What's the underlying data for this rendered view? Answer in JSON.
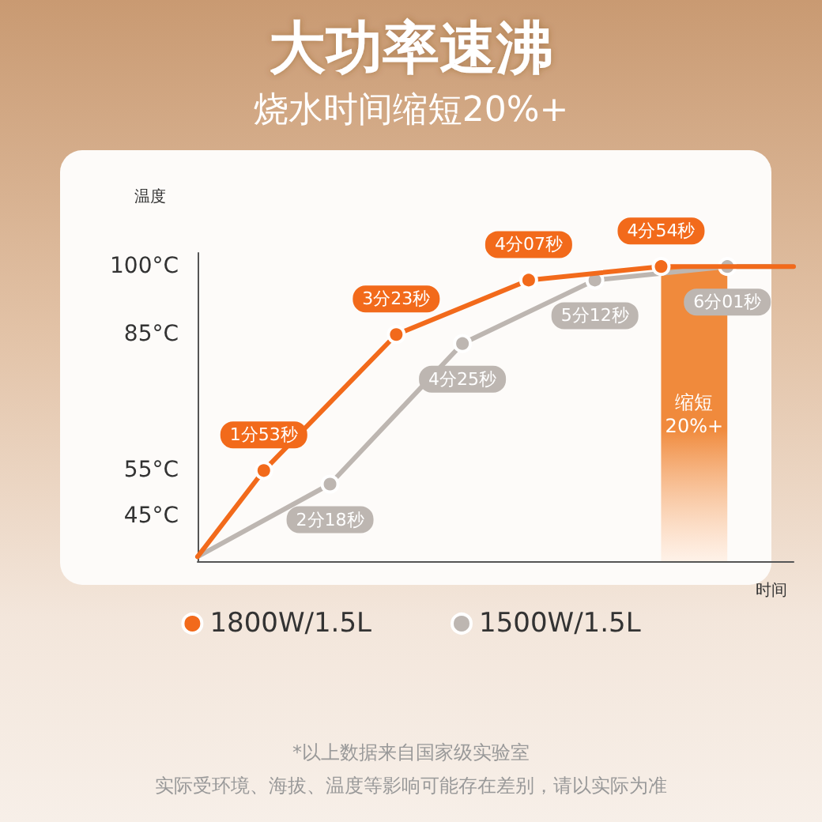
{
  "chart_data": {
    "type": "line",
    "title": "大功率速沸",
    "subtitle": "烧水时间缩短20%+",
    "xlabel": "时间",
    "ylabel": "温度",
    "categories": [
      null,
      null,
      null,
      null,
      null,
      null,
      null,
      null,
      null,
      null
    ],
    "series": [
      {
        "name": "1800W/1.5L",
        "color": "#f26a1b",
        "values": [
          36,
          55,
          null,
          85,
          null,
          97,
          null,
          100,
          null,
          100
        ]
      },
      {
        "name": "1500W/1.5L",
        "color": "#bdb6b1",
        "values": [
          36,
          null,
          52,
          null,
          83,
          null,
          97,
          null,
          100,
          100
        ]
      }
    ],
    "ylim": [
      35,
      103
    ],
    "yticks": [
      {
        "value": 45,
        "label": "45°C"
      },
      {
        "value": 55,
        "label": "55°C"
      },
      {
        "value": 85,
        "label": "85°C"
      },
      {
        "value": 100,
        "label": "100°C"
      }
    ],
    "tick_labels": "y",
    "grid": false,
    "legend": "bottom",
    "marker": "circle",
    "line_style": "solid",
    "bands": [
      {
        "axis": "y",
        "from": 35,
        "to": 100,
        "label": "缩短\n20%+",
        "color": "#f08a3c"
      }
    ],
    "annotations": [
      {
        "text": "1分53秒",
        "y": 55
      },
      {
        "text": "3分23秒",
        "y": 85
      },
      {
        "text": "4分07秒",
        "y": 97
      },
      {
        "text": "4分54秒",
        "y": 100
      },
      {
        "text": "2分18秒",
        "y": 52
      },
      {
        "text": "4分25秒",
        "y": 83
      },
      {
        "text": "5分12秒",
        "y": 97
      },
      {
        "text": "6分01秒",
        "y": 100
      },
      "*以上数据来自国家级实验室",
      "实际受环境、海拔、温度等影响可能存在差别，请以实际为准"
    ]
  }
}
